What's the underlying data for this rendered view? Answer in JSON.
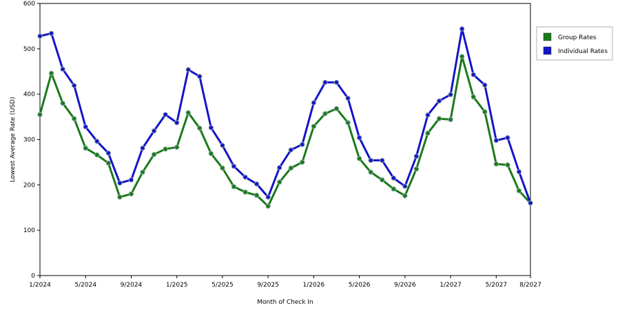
{
  "chart_data": {
    "type": "line",
    "title": "",
    "xlabel": "Month of Check In",
    "ylabel": "Lowest Average Rate (USD)",
    "ylim": [
      0,
      600
    ],
    "yticks": [
      0,
      100,
      200,
      300,
      400,
      500,
      600
    ],
    "x_months": [
      "1/2024",
      "2/2024",
      "3/2024",
      "4/2024",
      "5/2024",
      "6/2024",
      "7/2024",
      "8/2024",
      "9/2024",
      "10/2024",
      "11/2024",
      "12/2024",
      "1/2025",
      "2/2025",
      "3/2025",
      "4/2025",
      "5/2025",
      "6/2025",
      "7/2025",
      "8/2025",
      "9/2025",
      "10/2025",
      "11/2025",
      "12/2025",
      "1/2026",
      "2/2026",
      "3/2026",
      "4/2026",
      "5/2026",
      "6/2026",
      "7/2026",
      "8/2026",
      "9/2026",
      "10/2026",
      "11/2026",
      "12/2026",
      "1/2027",
      "2/2027",
      "3/2027",
      "4/2027",
      "5/2027",
      "6/2027",
      "7/2027",
      "8/2027"
    ],
    "xtick_labels": [
      "1/2024",
      "5/2024",
      "9/2024",
      "1/2025",
      "5/2025",
      "9/2025",
      "1/2026",
      "5/2026",
      "9/2026",
      "1/2027",
      "5/2027",
      "8/2027"
    ],
    "grid": "horizontal-dashed",
    "legend_position": "right",
    "series": [
      {
        "name": "Group Rates",
        "color": "#1a7a1a",
        "values": [
          355,
          446,
          380,
          346,
          281,
          266,
          248,
          173,
          180,
          228,
          267,
          279,
          283,
          359,
          325,
          269,
          237,
          196,
          184,
          177,
          153,
          206,
          237,
          250,
          329,
          357,
          368,
          337,
          258,
          228,
          211,
          191,
          176,
          235,
          314,
          346,
          344,
          483,
          394,
          361,
          246,
          244,
          187,
          160
        ]
      },
      {
        "name": "Individual Rates",
        "color": "#1414c8",
        "values": [
          528,
          534,
          455,
          419,
          328,
          296,
          270,
          204,
          211,
          281,
          319,
          355,
          337,
          454,
          439,
          326,
          287,
          241,
          217,
          202,
          173,
          238,
          277,
          289,
          381,
          426,
          426,
          391,
          304,
          254,
          254,
          215,
          197,
          263,
          354,
          385,
          399,
          544,
          443,
          420,
          298,
          304,
          229,
          160
        ]
      }
    ]
  }
}
